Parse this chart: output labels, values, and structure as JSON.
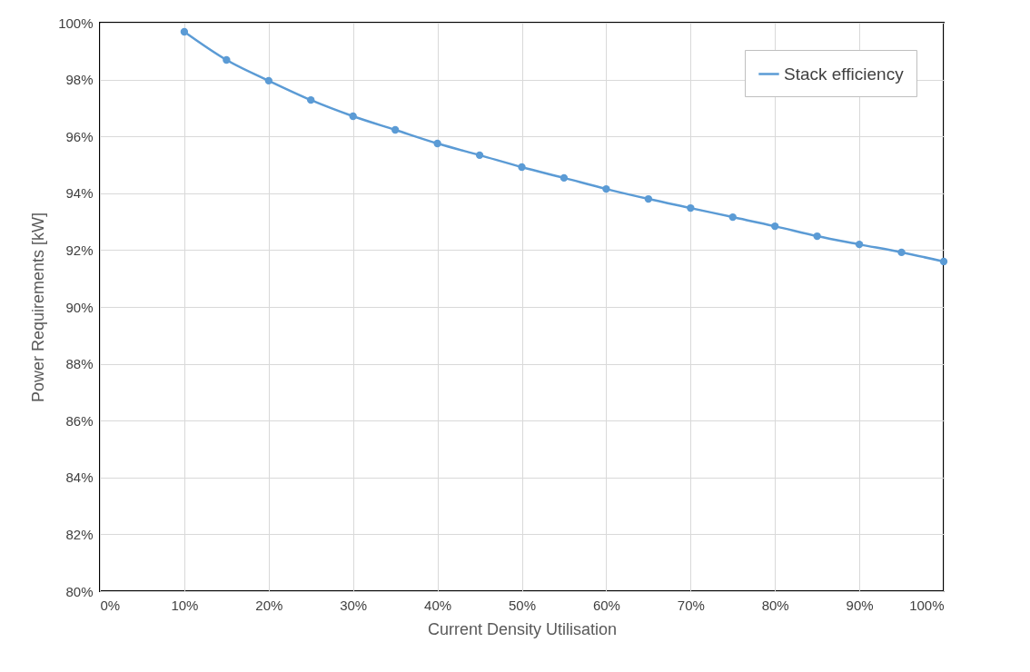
{
  "chart_data": {
    "type": "line",
    "xlabel": "Current Density Utilisation",
    "ylabel": "Power Requirements [kW]",
    "x": [
      10,
      15,
      20,
      25,
      30,
      35,
      40,
      45,
      50,
      55,
      60,
      65,
      70,
      75,
      80,
      85,
      90,
      95,
      100
    ],
    "series": [
      {
        "name": "Stack efficiency",
        "color": "#5b9bd5",
        "values": [
          99.68,
          98.69,
          97.96,
          97.28,
          96.71,
          96.23,
          95.75,
          95.34,
          94.92,
          94.54,
          94.15,
          93.8,
          93.48,
          93.16,
          92.84,
          92.49,
          92.2,
          91.92,
          91.6
        ]
      }
    ],
    "xlim": [
      0,
      100
    ],
    "xticks": [
      {
        "value": 0,
        "label": "0%"
      },
      {
        "value": 10,
        "label": "10%"
      },
      {
        "value": 20,
        "label": "20%"
      },
      {
        "value": 30,
        "label": "30%"
      },
      {
        "value": 40,
        "label": "40%"
      },
      {
        "value": 50,
        "label": "50%"
      },
      {
        "value": 60,
        "label": "60%"
      },
      {
        "value": 70,
        "label": "70%"
      },
      {
        "value": 80,
        "label": "80%"
      },
      {
        "value": 90,
        "label": "90%"
      },
      {
        "value": 100,
        "label": "100%"
      }
    ],
    "ylim": [
      80,
      100
    ],
    "yticks": [
      {
        "value": 80,
        "label": "80%"
      },
      {
        "value": 82,
        "label": "82%"
      },
      {
        "value": 84,
        "label": "84%"
      },
      {
        "value": 86,
        "label": "86%"
      },
      {
        "value": 88,
        "label": "88%"
      },
      {
        "value": 90,
        "label": "90%"
      },
      {
        "value": 92,
        "label": "92%"
      },
      {
        "value": 94,
        "label": "94%"
      },
      {
        "value": 96,
        "label": "96%"
      },
      {
        "value": 98,
        "label": "98%"
      },
      {
        "value": 100,
        "label": "100%"
      }
    ],
    "grid": true,
    "legend": "top right",
    "marker": "circle",
    "line_style": "solid"
  }
}
